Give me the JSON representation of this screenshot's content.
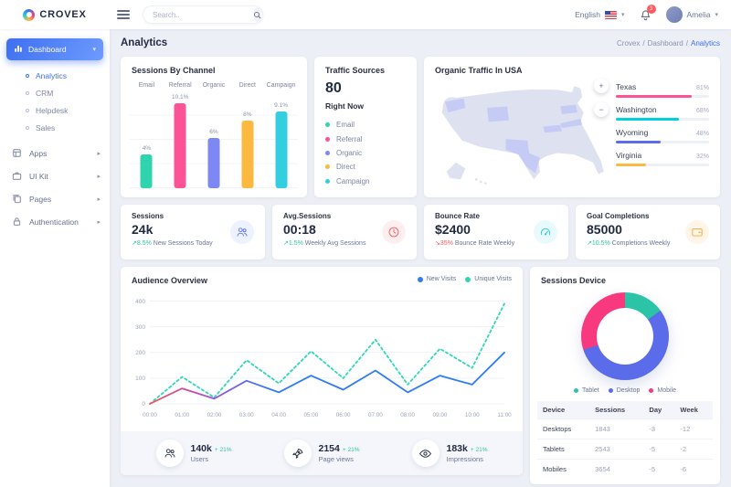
{
  "app": {
    "name": "CROVEX"
  },
  "topbar": {
    "search_placeholder": "Search..",
    "language": "English",
    "notification_count": "3",
    "user_name": "Amelia"
  },
  "sidebar": {
    "items": [
      {
        "label": "Dashboard",
        "icon": "bar-chart-icon",
        "active": true,
        "expanded": true,
        "children": [
          {
            "label": "Analytics",
            "active": true
          },
          {
            "label": "CRM",
            "active": false
          },
          {
            "label": "Helpdesk",
            "active": false
          },
          {
            "label": "Sales",
            "active": false
          }
        ]
      },
      {
        "label": "Apps",
        "icon": "box-icon"
      },
      {
        "label": "UI Kit",
        "icon": "briefcase-icon"
      },
      {
        "label": "Pages",
        "icon": "copy-icon"
      },
      {
        "label": "Authentication",
        "icon": "lock-icon"
      }
    ]
  },
  "page": {
    "title": "Analytics",
    "breadcrumb": [
      "Crovex",
      "Dashboard",
      "Analytics"
    ]
  },
  "traffic_sources": {
    "title": "Traffic Sources",
    "count": "80",
    "subtitle": "Right Now",
    "items": [
      {
        "label": "Email",
        "color": "#2fd3ad"
      },
      {
        "label": "Referral",
        "color": "#fc5296"
      },
      {
        "label": "Organic",
        "color": "#7e88f2"
      },
      {
        "label": "Direct",
        "color": "#fcb93f"
      },
      {
        "label": "Campaign",
        "color": "#33cfe0"
      }
    ]
  },
  "stat_cards": [
    {
      "title": "Sessions",
      "value": "24k",
      "delta": "8.5%",
      "trend": "up",
      "desc": "New Sessions Today",
      "icon": "users-icon",
      "icon_color": "#5b78f6",
      "icon_bg": "#eef1fe"
    },
    {
      "title": "Avg.Sessions",
      "value": "00:18",
      "delta": "1.5%",
      "trend": "up",
      "desc": "Weekly Avg Sessions",
      "icon": "clock-icon",
      "icon_color": "#ff5b5c",
      "icon_bg": "#ffeff0"
    },
    {
      "title": "Bounce Rate",
      "value": "$2400",
      "delta": "35%",
      "trend": "down",
      "desc": "Bounce Rate Weekly",
      "icon": "gauge-icon",
      "icon_color": "#22cce2",
      "icon_bg": "#e9fafc"
    },
    {
      "title": "Goal Completions",
      "value": "85000",
      "delta": "10.5%",
      "trend": "up",
      "desc": "Completions Weekly",
      "icon": "wallet-icon",
      "icon_color": "#fdac41",
      "icon_bg": "#fff5e8"
    }
  ],
  "audience_stats": [
    {
      "icon": "users-icon",
      "value": "140k",
      "delta": "+ 21%",
      "label": "Users"
    },
    {
      "icon": "rocket-icon",
      "value": "2154",
      "delta": "+ 21%",
      "label": "Page views"
    },
    {
      "icon": "eye-icon",
      "value": "183k",
      "delta": "+ 21%",
      "label": "Impressions"
    }
  ],
  "colors": {
    "primary": "#3e6ff0",
    "success": "#2ec5a4",
    "danger": "#ff5b5c",
    "background": "#edeff6"
  },
  "chart_data": [
    {
      "id": "sessions_by_channel",
      "type": "bar",
      "title": "Sessions By Channel",
      "categories": [
        "Email",
        "Referral",
        "Organic",
        "Direct",
        "Campaign"
      ],
      "values": [
        4,
        10.1,
        6,
        8,
        9.1
      ],
      "value_labels": [
        "4%",
        "10.1%",
        "6%",
        "8%",
        "9.1%"
      ],
      "colors": [
        "#2fd3ad",
        "#fc5296",
        "#7e88f2",
        "#fcb93f",
        "#33cfe0"
      ],
      "ylim": [
        0,
        11.5
      ],
      "grid": true
    },
    {
      "id": "organic_traffic_usa",
      "type": "bar",
      "orientation": "horizontal",
      "title": "Organic Traffic In USA",
      "categories": [
        "Texas",
        "Washington",
        "Wyoming",
        "Virginia"
      ],
      "values": [
        81,
        68,
        48,
        32
      ],
      "value_labels": [
        "81%",
        "68%",
        "48%",
        "32%"
      ],
      "colors": [
        "#fc5296",
        "#00cfdd",
        "#5b6ceb",
        "#fcb93f"
      ],
      "map_zoom_controls": [
        "+",
        "−"
      ]
    },
    {
      "id": "audience_overview",
      "type": "line",
      "title": "Audience Overview",
      "x_labels": [
        "00:00",
        "01:00",
        "02:00",
        "03:00",
        "04:00",
        "05:00",
        "06:00",
        "07:00",
        "08:00",
        "09:00",
        "10:00",
        "11:00"
      ],
      "y_ticks": [
        0,
        100,
        200,
        300,
        400
      ],
      "ylim": [
        0,
        420
      ],
      "legend_position": "top-right",
      "series": [
        {
          "name": "New Visits",
          "color": "#2f7cf6",
          "style": "solid",
          "gradient_start": "#ff5050",
          "values": [
            0,
            60,
            20,
            90,
            45,
            110,
            55,
            130,
            45,
            110,
            75,
            200
          ]
        },
        {
          "name": "Unique Visits",
          "color": "#2ed8b6",
          "style": "dotted",
          "values": [
            0,
            105,
            25,
            170,
            80,
            205,
            100,
            250,
            75,
            215,
            140,
            390
          ]
        }
      ]
    },
    {
      "id": "sessions_device",
      "type": "pie",
      "donut": true,
      "title": "Sessions Device",
      "labels": [
        "Tablet",
        "Desktop",
        "Mobile"
      ],
      "values": [
        15,
        55,
        30
      ],
      "colors": [
        "#2bc4a6",
        "#5b6ceb",
        "#f8397f"
      ],
      "table": {
        "headers": [
          "Device",
          "Sessions",
          "Day",
          "Week"
        ],
        "rows": [
          [
            "Desktops",
            "1843",
            "-3",
            "-12"
          ],
          [
            "Tablets",
            "2543",
            "-5",
            "-2"
          ],
          [
            "Mobiles",
            "3654",
            "-5",
            "-6"
          ]
        ]
      }
    }
  ]
}
